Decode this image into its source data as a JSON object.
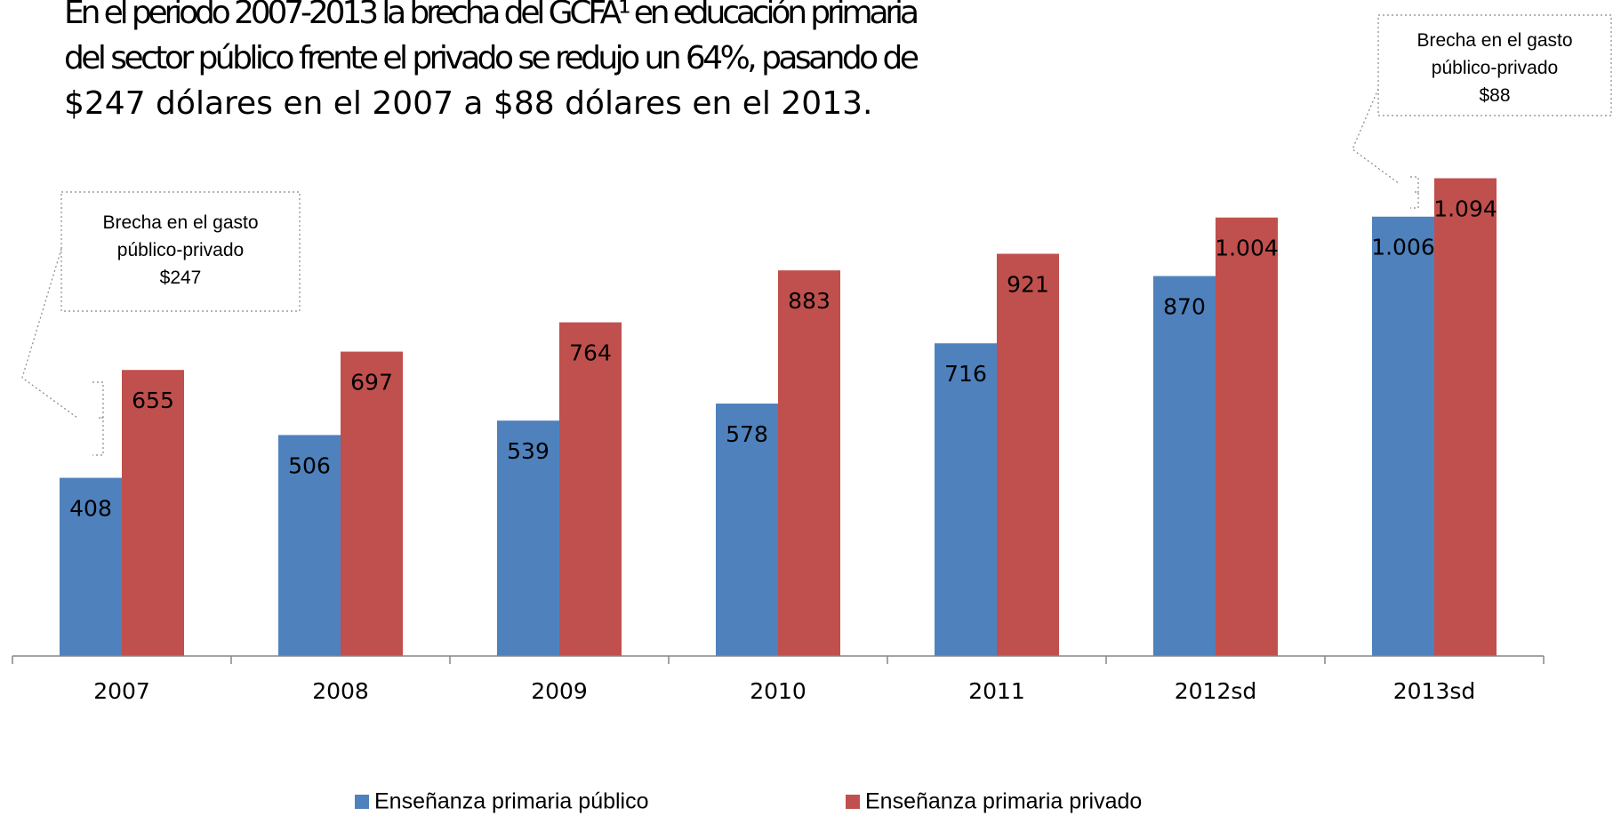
{
  "chart_data": {
    "type": "bar",
    "title": [
      "En el periodo 2007-2013 la brecha del GCFA¹ en educación primaria",
      "del sector público frente el privado se redujo un 64%, pasando de",
      "$247 dólares en el 2007 a $88 dólares en el 2013."
    ],
    "categories": [
      "2007",
      "2008",
      "2009",
      "2010",
      "2011",
      "2012sd",
      "2013sd"
    ],
    "series": [
      {
        "name": "Enseñanza primaria público",
        "color": "#4f81bd",
        "values": [
          408,
          506,
          539,
          578,
          716,
          870,
          1006
        ],
        "value_labels": [
          "408",
          "506",
          "539",
          "578",
          "716",
          "870",
          "1.006"
        ]
      },
      {
        "name": "Enseñanza primaria privado",
        "color": "#c0504d",
        "values": [
          655,
          697,
          764,
          883,
          921,
          1004,
          1094
        ],
        "value_labels": [
          "655",
          "697",
          "764",
          "883",
          "921",
          "1.004",
          "1.094"
        ]
      }
    ],
    "ylim": [
      0,
      1150
    ],
    "annotations": [
      {
        "lines": [
          "Brecha en el gasto",
          "público-privado",
          "$247"
        ]
      },
      {
        "lines": [
          "Brecha en el gasto",
          "público-privado",
          "$88"
        ]
      }
    ]
  }
}
